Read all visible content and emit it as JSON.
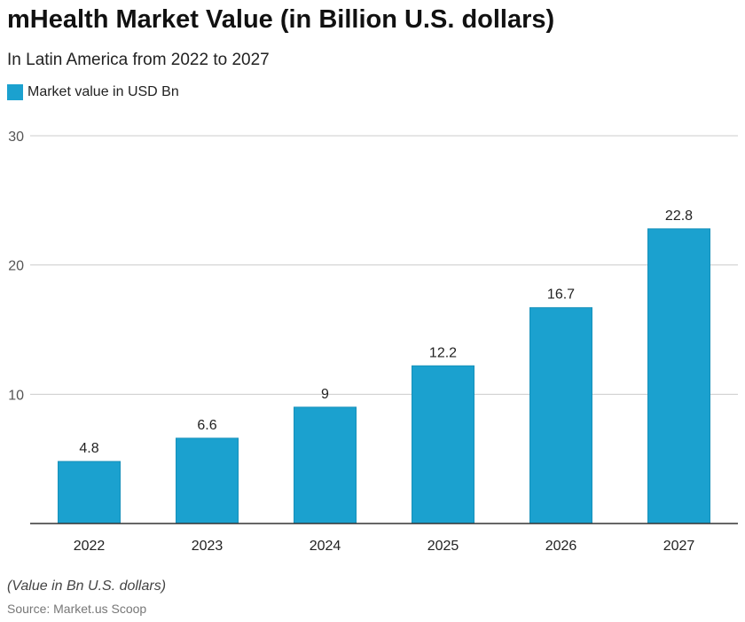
{
  "title": "mHealth Market Value (in Billion U.S. dollars)",
  "subtitle": "In Latin America from 2022 to 2027",
  "note": "(Value in Bn U.S. dollars)",
  "source": "Source: Market.us Scoop",
  "chart_data": {
    "type": "bar",
    "categories": [
      "2022",
      "2023",
      "2024",
      "2025",
      "2026",
      "2027"
    ],
    "series": [
      {
        "name": "Market value in USD Bn",
        "values": [
          4.8,
          6.6,
          9,
          12.2,
          16.7,
          22.8
        ],
        "color": "#1ba1cf"
      }
    ],
    "ylim": [
      0,
      30
    ],
    "yticks": [
      10,
      20,
      30
    ],
    "grid": true,
    "legend": "top-left",
    "data_labels": true
  }
}
